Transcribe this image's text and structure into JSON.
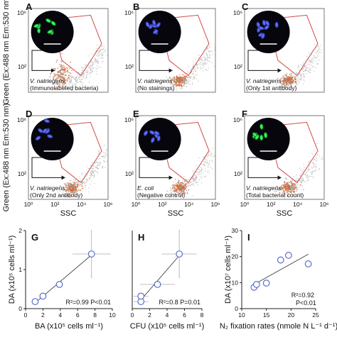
{
  "figure": {
    "flow_axes": {
      "ylabel": "Green (Ex:488 nm Em:530 nm)",
      "xlabel": "SSC",
      "xticks": [
        "10⁰",
        "10²",
        "10⁴",
        "10⁶"
      ],
      "yticks_top": "10⁶",
      "yticks_mid": "10²"
    },
    "panels": [
      {
        "letter": "A",
        "species": "V. natriegens",
        "note": "(Immunolabeled bacteria)",
        "stain": "green-rods"
      },
      {
        "letter": "B",
        "species": "V. natriegens",
        "note": "(No stainings)",
        "stain": "blue-rods"
      },
      {
        "letter": "C",
        "species": "V. natriegens",
        "note": "(Only 1st antibody)",
        "stain": "blue-cluster"
      },
      {
        "letter": "D",
        "species": "V. natriegens",
        "note": "(Only 2nd antibody)",
        "stain": "blue-rods"
      },
      {
        "letter": "E",
        "species": "E. coli",
        "note": "(Negative control)",
        "stain": "blue-chain"
      },
      {
        "letter": "F",
        "species": "V. natriegens",
        "note": "(Total bacterial count)",
        "stain": "green-rods"
      }
    ],
    "colors": {
      "gate": "#d24a4a",
      "scatter_dense": "#e0642a",
      "scatter_light": "#9a9a9a",
      "marker": "#5a6fd0",
      "fit": "#555555"
    }
  },
  "chart_data": [
    {
      "panel": "G",
      "type": "scatter",
      "xlabel": "BA (x10⁵ cells ml⁻¹)",
      "ylabel": "DA (x10⁵ cells ml⁻¹)",
      "xlim": [
        0,
        10
      ],
      "ylim": [
        0,
        2
      ],
      "xticks": [
        "0",
        "2",
        "4",
        "6",
        "8",
        "10"
      ],
      "yticks": [
        "0",
        "1",
        "2"
      ],
      "x": [
        1.1,
        2.0,
        3.9,
        7.6
      ],
      "y": [
        0.18,
        0.32,
        0.62,
        1.4
      ],
      "xerr": [
        0.15,
        0.2,
        0.3,
        2.2
      ],
      "yerr": [
        0.05,
        0.06,
        0.08,
        0.62
      ],
      "stat_text": "R²=0.99 P<0.01"
    },
    {
      "panel": "H",
      "type": "scatter",
      "xlabel": "CFU (x10⁵ cells ml⁻¹)",
      "xlim": [
        0,
        8
      ],
      "ylim": [
        0,
        2
      ],
      "xticks": [
        "0",
        "2",
        "4",
        "6",
        "8"
      ],
      "x": [
        1.0,
        1.0,
        2.9,
        5.4
      ],
      "y": [
        0.18,
        0.32,
        0.62,
        1.4
      ],
      "xerr": [
        0.85,
        0.85,
        2.0,
        2.0
      ],
      "yerr": [
        0.05,
        0.06,
        0.08,
        0.62
      ],
      "stat_text": "R²=0.8 P=0.01"
    },
    {
      "panel": "I",
      "type": "scatter",
      "xlabel": "N₂ fixation rates (nmole N L⁻¹ d⁻¹)",
      "ylabel": "DA (x10⁷ cells ml⁻¹)",
      "xlim": [
        10,
        25
      ],
      "ylim": [
        0,
        30
      ],
      "xticks": [
        "10",
        "15",
        "20",
        "25"
      ],
      "yticks": [
        "0",
        "10",
        "20",
        "30"
      ],
      "x": [
        12.5,
        13.0,
        15.0,
        17.9,
        19.5,
        23.5
      ],
      "y": [
        8.2,
        9.3,
        9.8,
        18.7,
        20.5,
        17.2
      ],
      "stat_text": "R²=0.92",
      "stat_text2": "P<0.01"
    }
  ]
}
